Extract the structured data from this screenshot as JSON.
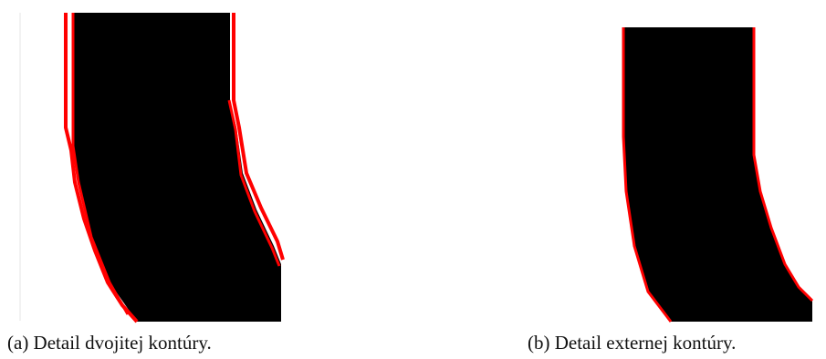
{
  "figures": [
    {
      "caption": "(a) Detail dvojitej kontúry."
    },
    {
      "caption": "(b) Detail externej kontúry."
    }
  ]
}
